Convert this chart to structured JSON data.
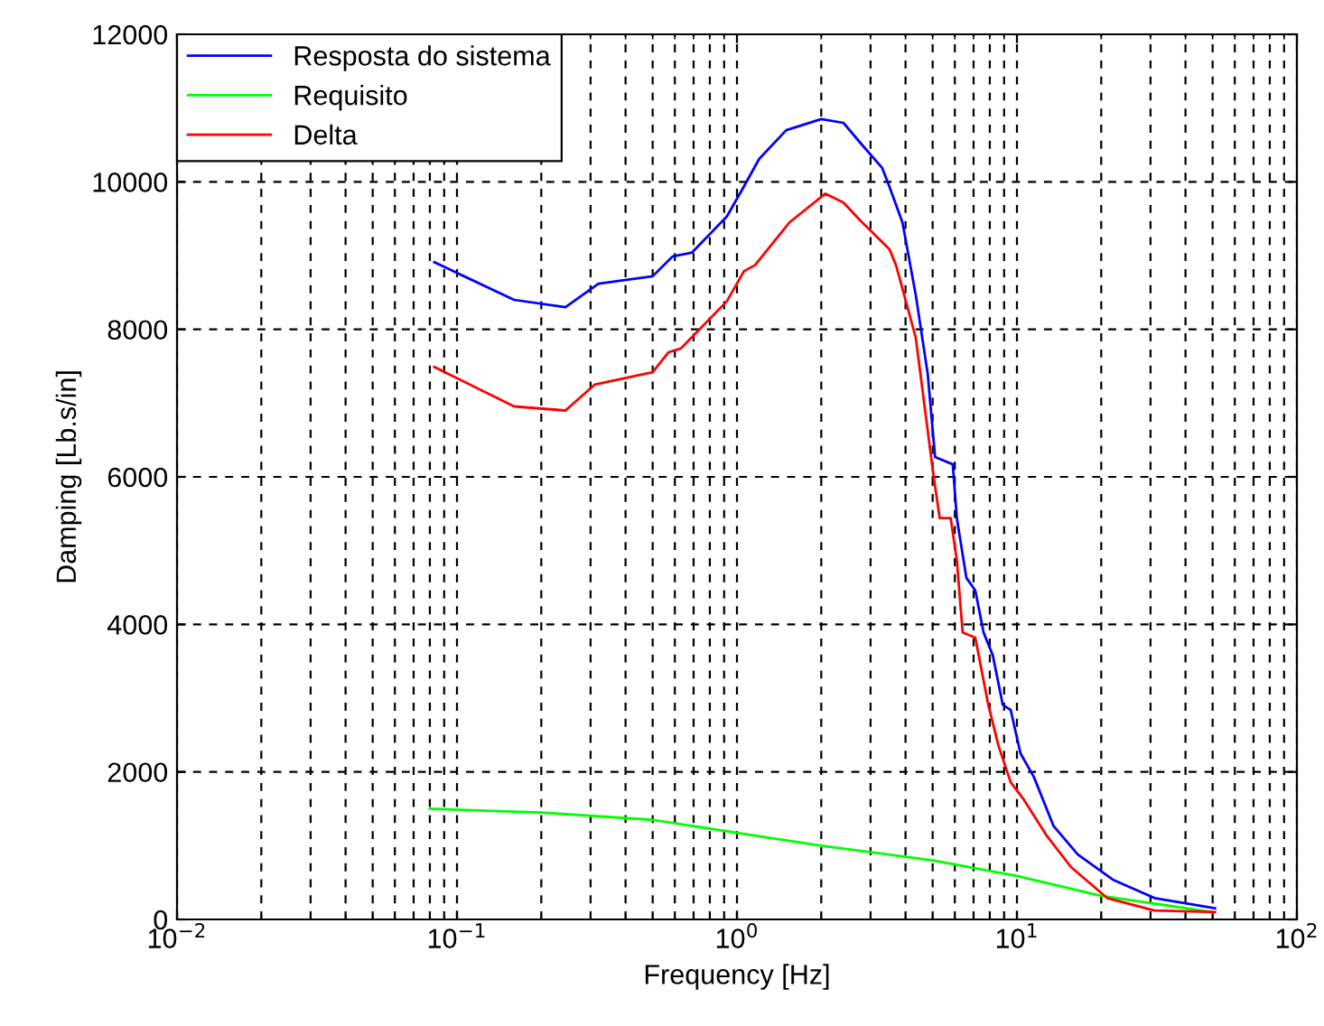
{
  "chart_data": {
    "type": "line",
    "xlabel": "Frequency [Hz]",
    "ylabel": "Damping [Lb.s/in]",
    "log": "x",
    "grid": true,
    "legend": "top left",
    "line_style": "solid",
    "marker": "none",
    "xlim": [
      0.01,
      100
    ],
    "xticks": [
      {
        "value": 0.01,
        "label": "10$^{−2}$"
      },
      {
        "value": 0.1,
        "label": "10$^{−1}$"
      },
      {
        "value": 1,
        "label": "10$^{0}$"
      },
      {
        "value": 10,
        "label": "10$^{1}$"
      },
      {
        "value": 100,
        "label": "10$^{2}$"
      }
    ],
    "ylim": [
      0,
      12000
    ],
    "yticks": [
      0,
      2000,
      4000,
      6000,
      8000,
      10000,
      12000
    ],
    "series": [
      {
        "name": "Resposta do sistema",
        "color": "#0000ff",
        "x": [
          0.083,
          0.16,
          0.244,
          0.32,
          0.5,
          0.59,
          0.69,
          0.92,
          1.06,
          1.2,
          1.5,
          2.0,
          2.4,
          2.8,
          3.3,
          3.5,
          3.9,
          4.35,
          4.8,
          5.1,
          5.9,
          6.1,
          6.6,
          7.1,
          7.6,
          8.2,
          8.9,
          9.5,
          10.3,
          11.5,
          13.5,
          16.5,
          22,
          31,
          51
        ],
        "values": [
          8910,
          8400,
          8300,
          8620,
          8720,
          8990,
          9040,
          9530,
          9940,
          10310,
          10700,
          10850,
          10800,
          10500,
          10190,
          9940,
          9450,
          8470,
          7400,
          6270,
          6170,
          5440,
          4630,
          4460,
          3890,
          3580,
          2910,
          2840,
          2250,
          1930,
          1270,
          880,
          540,
          290,
          150
        ]
      },
      {
        "name": "Requisito",
        "color": "#00ff00",
        "x": [
          0.08,
          0.2,
          0.5,
          1,
          2,
          5,
          10,
          20,
          50
        ],
        "values": [
          1500,
          1450,
          1350,
          1175,
          1000,
          800,
          590,
          320,
          100
        ]
      },
      {
        "name": "Delta",
        "color": "#ff0000",
        "x": [
          0.083,
          0.16,
          0.244,
          0.31,
          0.5,
          0.57,
          0.63,
          0.92,
          1.06,
          1.16,
          1.54,
          2.07,
          2.4,
          2.75,
          3.5,
          3.7,
          4.35,
          5.03,
          5.3,
          5.8,
          6.1,
          6.4,
          7.1,
          7.9,
          8.6,
          9.5,
          10.6,
          12.8,
          15.6,
          21,
          31,
          51
        ],
        "values": [
          7490,
          6955,
          6900,
          7250,
          7420,
          7690,
          7740,
          8380,
          8790,
          8870,
          9450,
          9840,
          9720,
          9480,
          9090,
          8870,
          7890,
          6030,
          5440,
          5440,
          4870,
          3890,
          3820,
          2910,
          2350,
          1860,
          1620,
          1130,
          710,
          290,
          120,
          100
        ]
      }
    ]
  }
}
